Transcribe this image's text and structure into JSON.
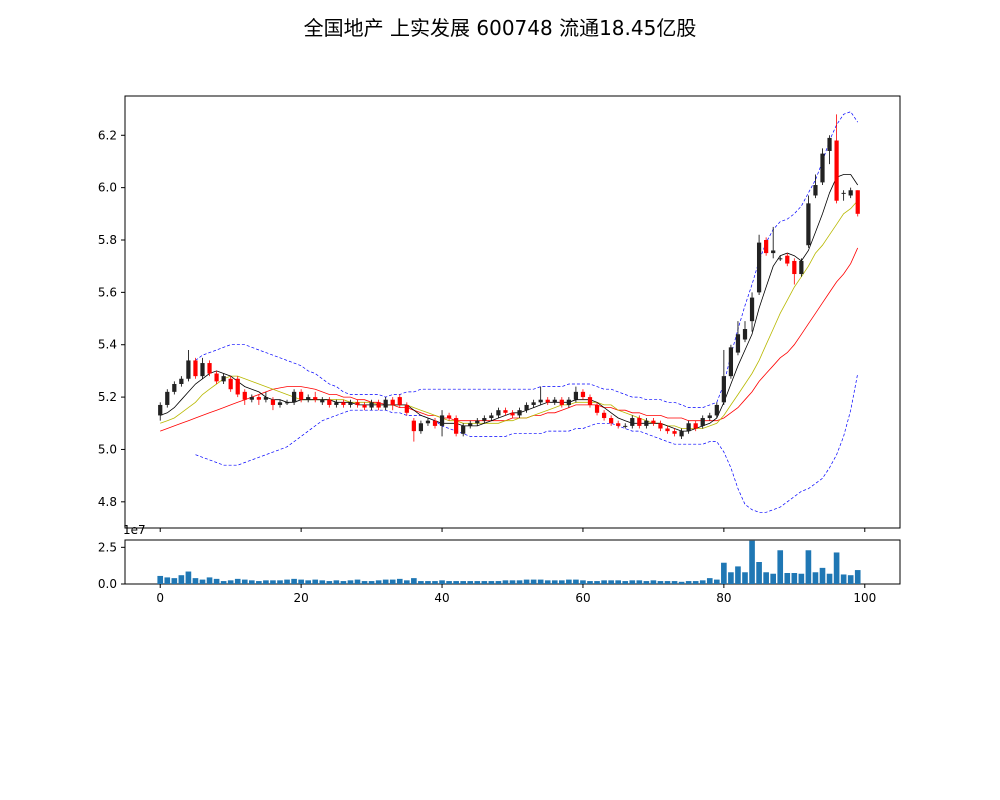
{
  "title": "全国地产 上实发展 600748 流通18.45亿股",
  "colors": {
    "up": "#ff0000",
    "down": "#000000",
    "ma_short": "#000000",
    "ma_mid": "#b8b800",
    "ma_long": "#ff0000",
    "boll": "#0000ff",
    "volume": "#1f77b4"
  },
  "chart_data": [
    {
      "type": "candlestick",
      "ylim": [
        4.7,
        6.35
      ],
      "yticks": [
        "4.8",
        "5.0",
        "5.2",
        "5.4",
        "5.6",
        "5.8",
        "6.0",
        "6.2"
      ],
      "ytick_values": [
        4.8,
        5.0,
        5.2,
        5.4,
        5.6,
        5.8,
        6.0,
        6.2
      ],
      "xlim": [
        -5,
        105
      ],
      "x_start": 0,
      "candles": [
        [
          5.13,
          5.17,
          5.11,
          5.18
        ],
        [
          5.17,
          5.22,
          5.16,
          5.23
        ],
        [
          5.22,
          5.25,
          5.21,
          5.26
        ],
        [
          5.25,
          5.27,
          5.24,
          5.28
        ],
        [
          5.27,
          5.34,
          5.26,
          5.38
        ],
        [
          5.34,
          5.28,
          5.27,
          5.35
        ],
        [
          5.28,
          5.33,
          5.27,
          5.35
        ],
        [
          5.33,
          5.29,
          5.28,
          5.34
        ],
        [
          5.29,
          5.26,
          5.25,
          5.3
        ],
        [
          5.26,
          5.28,
          5.25,
          5.29
        ],
        [
          5.27,
          5.23,
          5.22,
          5.28
        ],
        [
          5.27,
          5.21,
          5.2,
          5.28
        ],
        [
          5.22,
          5.19,
          5.17,
          5.23
        ],
        [
          5.19,
          5.2,
          5.18,
          5.21
        ],
        [
          5.2,
          5.19,
          5.17,
          5.21
        ],
        [
          5.19,
          5.2,
          5.18,
          5.22
        ],
        [
          5.19,
          5.17,
          5.15,
          5.2
        ],
        [
          5.17,
          5.18,
          5.16,
          5.19
        ],
        [
          5.18,
          5.18,
          5.17,
          5.19
        ],
        [
          5.18,
          5.22,
          5.17,
          5.23
        ],
        [
          5.22,
          5.19,
          5.18,
          5.23
        ],
        [
          5.19,
          5.2,
          5.18,
          5.21
        ],
        [
          5.2,
          5.19,
          5.18,
          5.22
        ],
        [
          5.18,
          5.19,
          5.17,
          5.2
        ],
        [
          5.19,
          5.17,
          5.16,
          5.2
        ],
        [
          5.17,
          5.18,
          5.16,
          5.19
        ],
        [
          5.18,
          5.17,
          5.16,
          5.19
        ],
        [
          5.17,
          5.18,
          5.16,
          5.19
        ],
        [
          5.18,
          5.17,
          5.16,
          5.19
        ],
        [
          5.17,
          5.16,
          5.15,
          5.18
        ],
        [
          5.16,
          5.18,
          5.15,
          5.19
        ],
        [
          5.18,
          5.16,
          5.15,
          5.19
        ],
        [
          5.16,
          5.19,
          5.15,
          5.2
        ],
        [
          5.19,
          5.17,
          5.15,
          5.2
        ],
        [
          5.2,
          5.17,
          5.16,
          5.21
        ],
        [
          5.17,
          5.14,
          5.13,
          5.18
        ],
        [
          5.11,
          5.07,
          5.03,
          5.12
        ],
        [
          5.07,
          5.1,
          5.06,
          5.11
        ],
        [
          5.1,
          5.11,
          5.09,
          5.12
        ],
        [
          5.11,
          5.09,
          5.08,
          5.12
        ],
        [
          5.09,
          5.13,
          5.05,
          5.15
        ],
        [
          5.13,
          5.12,
          5.11,
          5.14
        ],
        [
          5.12,
          5.06,
          5.05,
          5.13
        ],
        [
          5.06,
          5.09,
          5.05,
          5.1
        ],
        [
          5.09,
          5.1,
          5.08,
          5.11
        ],
        [
          5.1,
          5.11,
          5.09,
          5.12
        ],
        [
          5.11,
          5.12,
          5.1,
          5.13
        ],
        [
          5.12,
          5.13,
          5.11,
          5.14
        ],
        [
          5.13,
          5.15,
          5.12,
          5.16
        ],
        [
          5.15,
          5.14,
          5.13,
          5.16
        ],
        [
          5.14,
          5.13,
          5.12,
          5.15
        ],
        [
          5.13,
          5.15,
          5.12,
          5.16
        ],
        [
          5.15,
          5.17,
          5.14,
          5.18
        ],
        [
          5.17,
          5.18,
          5.16,
          5.19
        ],
        [
          5.18,
          5.19,
          5.17,
          5.24
        ],
        [
          5.19,
          5.18,
          5.17,
          5.2
        ],
        [
          5.18,
          5.19,
          5.17,
          5.2
        ],
        [
          5.19,
          5.17,
          5.16,
          5.2
        ],
        [
          5.17,
          5.19,
          5.16,
          5.2
        ],
        [
          5.19,
          5.22,
          5.18,
          5.24
        ],
        [
          5.22,
          5.2,
          5.19,
          5.23
        ],
        [
          5.2,
          5.17,
          5.16,
          5.21
        ],
        [
          5.17,
          5.14,
          5.13,
          5.18
        ],
        [
          5.14,
          5.12,
          5.11,
          5.15
        ],
        [
          5.12,
          5.1,
          5.09,
          5.13
        ],
        [
          5.1,
          5.09,
          5.08,
          5.11
        ],
        [
          5.09,
          5.09,
          5.08,
          5.1
        ],
        [
          5.09,
          5.12,
          5.08,
          5.13
        ],
        [
          5.12,
          5.09,
          5.08,
          5.13
        ],
        [
          5.09,
          5.11,
          5.08,
          5.12
        ],
        [
          5.11,
          5.1,
          5.09,
          5.12
        ],
        [
          5.1,
          5.08,
          5.07,
          5.11
        ],
        [
          5.08,
          5.07,
          5.06,
          5.09
        ],
        [
          5.07,
          5.06,
          5.05,
          5.08
        ],
        [
          5.05,
          5.07,
          5.04,
          5.08
        ],
        [
          5.07,
          5.1,
          5.06,
          5.11
        ],
        [
          5.1,
          5.08,
          5.07,
          5.11
        ],
        [
          5.09,
          5.12,
          5.08,
          5.13
        ],
        [
          5.12,
          5.13,
          5.11,
          5.14
        ],
        [
          5.13,
          5.17,
          5.12,
          5.18
        ],
        [
          5.18,
          5.28,
          5.17,
          5.38
        ],
        [
          5.28,
          5.39,
          5.27,
          5.4
        ],
        [
          5.37,
          5.44,
          5.36,
          5.49
        ],
        [
          5.42,
          5.46,
          5.41,
          5.49
        ],
        [
          5.49,
          5.58,
          5.45,
          5.6
        ],
        [
          5.6,
          5.79,
          5.59,
          5.82
        ],
        [
          5.8,
          5.75,
          5.74,
          5.81
        ],
        [
          5.75,
          5.76,
          5.73,
          5.85
        ],
        [
          5.73,
          5.73,
          5.72,
          5.74
        ],
        [
          5.74,
          5.71,
          5.7,
          5.75
        ],
        [
          5.72,
          5.67,
          5.63,
          5.73
        ],
        [
          5.67,
          5.72,
          5.66,
          5.73
        ],
        [
          5.78,
          5.94,
          5.77,
          5.97
        ],
        [
          5.97,
          6.01,
          5.96,
          6.05
        ],
        [
          6.02,
          6.13,
          6.01,
          6.15
        ],
        [
          6.14,
          6.19,
          6.09,
          6.2
        ],
        [
          6.18,
          5.95,
          5.94,
          6.28
        ],
        [
          5.98,
          5.98,
          5.95,
          5.99
        ],
        [
          5.97,
          5.99,
          5.96,
          6.0
        ],
        [
          5.99,
          5.9,
          5.89,
          5.99
        ]
      ],
      "ma_short": [
        5.13,
        5.14,
        5.16,
        5.19,
        5.22,
        5.25,
        5.27,
        5.29,
        5.3,
        5.29,
        5.28,
        5.26,
        5.24,
        5.23,
        5.22,
        5.2,
        5.19,
        5.19,
        5.18,
        5.18,
        5.19,
        5.19,
        5.19,
        5.19,
        5.19,
        5.18,
        5.18,
        5.18,
        5.17,
        5.17,
        5.17,
        5.17,
        5.17,
        5.17,
        5.17,
        5.17,
        5.15,
        5.13,
        5.12,
        5.11,
        5.1,
        5.1,
        5.1,
        5.09,
        5.09,
        5.09,
        5.1,
        5.11,
        5.12,
        5.13,
        5.14,
        5.14,
        5.15,
        5.16,
        5.17,
        5.18,
        5.18,
        5.18,
        5.18,
        5.19,
        5.19,
        5.19,
        5.18,
        5.16,
        5.14,
        5.12,
        5.11,
        5.1,
        5.1,
        5.1,
        5.1,
        5.1,
        5.09,
        5.08,
        5.07,
        5.07,
        5.08,
        5.09,
        5.1,
        5.12,
        5.18,
        5.25,
        5.32,
        5.38,
        5.44,
        5.54,
        5.62,
        5.7,
        5.74,
        5.75,
        5.74,
        5.72,
        5.76,
        5.83,
        5.9,
        5.98,
        6.04,
        6.05,
        6.05,
        6.01
      ],
      "ma_mid": [
        5.1,
        5.11,
        5.12,
        5.14,
        5.16,
        5.18,
        5.21,
        5.23,
        5.25,
        5.27,
        5.28,
        5.28,
        5.27,
        5.26,
        5.25,
        5.24,
        5.23,
        5.22,
        5.21,
        5.2,
        5.19,
        5.19,
        5.19,
        5.19,
        5.19,
        5.19,
        5.19,
        5.18,
        5.18,
        5.18,
        5.18,
        5.17,
        5.17,
        5.17,
        5.17,
        5.17,
        5.16,
        5.15,
        5.14,
        5.13,
        5.12,
        5.11,
        5.11,
        5.1,
        5.1,
        5.1,
        5.1,
        5.1,
        5.1,
        5.11,
        5.11,
        5.12,
        5.12,
        5.13,
        5.14,
        5.15,
        5.16,
        5.17,
        5.17,
        5.18,
        5.18,
        5.18,
        5.18,
        5.17,
        5.17,
        5.15,
        5.14,
        5.13,
        5.12,
        5.11,
        5.1,
        5.1,
        5.09,
        5.09,
        5.08,
        5.08,
        5.08,
        5.08,
        5.09,
        5.1,
        5.13,
        5.17,
        5.21,
        5.25,
        5.29,
        5.34,
        5.4,
        5.46,
        5.52,
        5.57,
        5.62,
        5.66,
        5.7,
        5.75,
        5.78,
        5.82,
        5.86,
        5.9,
        5.92,
        5.95
      ],
      "ma_long": [
        5.07,
        5.08,
        5.09,
        5.1,
        5.11,
        5.12,
        5.13,
        5.14,
        5.15,
        5.16,
        5.17,
        5.18,
        5.19,
        5.2,
        5.21,
        5.22,
        5.23,
        5.235,
        5.24,
        5.24,
        5.24,
        5.235,
        5.23,
        5.22,
        5.21,
        5.21,
        5.2,
        5.2,
        5.19,
        5.19,
        5.18,
        5.18,
        5.17,
        5.17,
        5.16,
        5.16,
        5.15,
        5.14,
        5.13,
        5.13,
        5.12,
        5.12,
        5.11,
        5.11,
        5.11,
        5.11,
        5.11,
        5.11,
        5.11,
        5.11,
        5.12,
        5.12,
        5.12,
        5.13,
        5.13,
        5.14,
        5.14,
        5.15,
        5.16,
        5.17,
        5.17,
        5.17,
        5.17,
        5.16,
        5.16,
        5.15,
        5.15,
        5.14,
        5.14,
        5.13,
        5.13,
        5.13,
        5.12,
        5.12,
        5.12,
        5.11,
        5.11,
        5.11,
        5.11,
        5.11,
        5.12,
        5.14,
        5.16,
        5.19,
        5.22,
        5.26,
        5.29,
        5.32,
        5.35,
        5.37,
        5.4,
        5.44,
        5.48,
        5.52,
        5.56,
        5.6,
        5.64,
        5.67,
        5.71,
        5.77
      ],
      "boll_upper": [
        null,
        null,
        null,
        null,
        null,
        5.34,
        5.36,
        5.37,
        5.38,
        5.39,
        5.4,
        5.4,
        5.4,
        5.39,
        5.38,
        5.37,
        5.36,
        5.35,
        5.34,
        5.33,
        5.32,
        5.3,
        5.29,
        5.27,
        5.25,
        5.24,
        5.22,
        5.21,
        5.21,
        5.21,
        5.21,
        5.21,
        5.2,
        5.21,
        5.21,
        5.22,
        5.22,
        5.23,
        5.23,
        5.23,
        5.23,
        5.23,
        5.23,
        5.23,
        5.23,
        5.23,
        5.23,
        5.23,
        5.23,
        5.23,
        5.23,
        5.23,
        5.23,
        5.23,
        5.24,
        5.24,
        5.24,
        5.24,
        5.25,
        5.25,
        5.25,
        5.25,
        5.24,
        5.23,
        5.23,
        5.22,
        5.21,
        5.2,
        5.2,
        5.19,
        5.19,
        5.19,
        5.18,
        5.18,
        5.17,
        5.16,
        5.16,
        5.16,
        5.17,
        5.18,
        5.25,
        5.36,
        5.46,
        5.55,
        5.63,
        5.72,
        5.79,
        5.84,
        5.87,
        5.88,
        5.9,
        5.93,
        5.98,
        6.03,
        6.1,
        6.18,
        6.24,
        6.28,
        6.29,
        6.25
      ],
      "boll_lower": [
        null,
        null,
        null,
        null,
        null,
        4.98,
        4.97,
        4.96,
        4.95,
        4.94,
        4.94,
        4.94,
        4.95,
        4.96,
        4.97,
        4.98,
        4.99,
        5.0,
        5.01,
        5.03,
        5.05,
        5.07,
        5.09,
        5.11,
        5.12,
        5.13,
        5.14,
        5.15,
        5.15,
        5.15,
        5.15,
        5.15,
        5.15,
        5.14,
        5.14,
        5.13,
        5.13,
        5.13,
        5.12,
        5.11,
        5.09,
        5.08,
        5.07,
        5.06,
        5.05,
        5.05,
        5.05,
        5.05,
        5.05,
        5.05,
        5.06,
        5.06,
        5.06,
        5.06,
        5.06,
        5.07,
        5.07,
        5.07,
        5.07,
        5.08,
        5.08,
        5.09,
        5.1,
        5.1,
        5.1,
        5.09,
        5.08,
        5.07,
        5.07,
        5.06,
        5.05,
        5.04,
        5.03,
        5.02,
        5.02,
        5.02,
        5.02,
        5.02,
        5.03,
        5.03,
        4.99,
        4.93,
        4.85,
        4.79,
        4.77,
        4.76,
        4.76,
        4.77,
        4.78,
        4.8,
        4.82,
        4.84,
        4.85,
        4.87,
        4.89,
        4.93,
        4.98,
        5.05,
        5.15,
        5.29
      ]
    },
    {
      "type": "bar",
      "name": "volume",
      "scale_label": "1e7",
      "ylim": [
        0,
        3.0
      ],
      "yticks": [
        "0.0",
        "2.5"
      ],
      "ytick_values": [
        0.0,
        2.5
      ],
      "xticks": [
        "0",
        "20",
        "40",
        "60",
        "80",
        "100"
      ],
      "xtick_values": [
        0,
        20,
        40,
        60,
        80,
        100
      ],
      "values": [
        0.55,
        0.45,
        0.4,
        0.6,
        0.85,
        0.4,
        0.3,
        0.45,
        0.35,
        0.2,
        0.25,
        0.35,
        0.3,
        0.25,
        0.2,
        0.25,
        0.25,
        0.25,
        0.3,
        0.35,
        0.3,
        0.25,
        0.3,
        0.25,
        0.2,
        0.25,
        0.2,
        0.25,
        0.3,
        0.2,
        0.2,
        0.25,
        0.3,
        0.3,
        0.35,
        0.25,
        0.4,
        0.2,
        0.2,
        0.2,
        0.25,
        0.2,
        0.2,
        0.2,
        0.2,
        0.2,
        0.2,
        0.2,
        0.2,
        0.25,
        0.25,
        0.25,
        0.3,
        0.3,
        0.3,
        0.25,
        0.25,
        0.25,
        0.3,
        0.3,
        0.25,
        0.2,
        0.2,
        0.25,
        0.25,
        0.25,
        0.2,
        0.25,
        0.25,
        0.2,
        0.25,
        0.2,
        0.2,
        0.2,
        0.15,
        0.2,
        0.2,
        0.25,
        0.4,
        0.3,
        1.45,
        0.8,
        1.2,
        0.8,
        2.95,
        1.5,
        0.8,
        0.7,
        2.3,
        0.75,
        0.75,
        0.7,
        2.3,
        0.8,
        1.1,
        0.7,
        2.15,
        0.65,
        0.6,
        0.95
      ]
    }
  ]
}
